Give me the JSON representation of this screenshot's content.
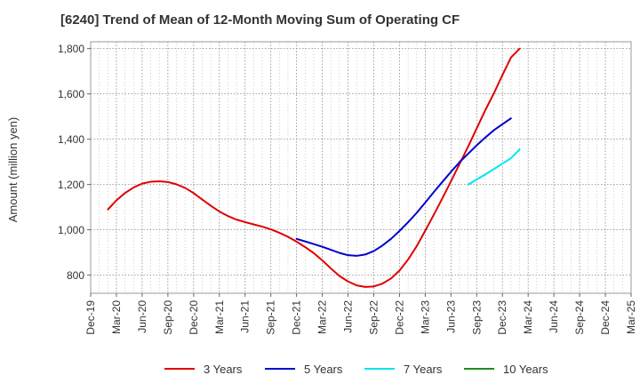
{
  "chart_data": {
    "type": "line",
    "title": "[6240]  Trend of Mean of 12-Month Moving Sum of Operating CF",
    "xlabel": "",
    "ylabel": "Amount (million yen)",
    "ylim": [
      720,
      1830
    ],
    "yticks": [
      800,
      1000,
      1200,
      1400,
      1600,
      1800
    ],
    "ytick_labels": [
      "800",
      "1,000",
      "1,200",
      "1,400",
      "1,600",
      "1,800"
    ],
    "x_tick_labels": [
      "Dec-19",
      "Mar-20",
      "Jun-20",
      "Sep-20",
      "Dec-20",
      "Mar-21",
      "Jun-21",
      "Sep-21",
      "Dec-21",
      "Mar-22",
      "Jun-22",
      "Sep-22",
      "Dec-22",
      "Mar-23",
      "Jun-23",
      "Sep-23",
      "Dec-23",
      "Mar-24",
      "Jun-24",
      "Sep-24",
      "Dec-24",
      "Mar-25"
    ],
    "x_unit": "quarter index from Dec-19",
    "grid": true,
    "legend_position": "bottom",
    "series": [
      {
        "name": "3 Years",
        "color": "#e00000",
        "points": [
          [
            0.67,
            1090
          ],
          [
            1,
            1130
          ],
          [
            1.33,
            1162
          ],
          [
            1.67,
            1187
          ],
          [
            2,
            1204
          ],
          [
            2.33,
            1212
          ],
          [
            2.67,
            1214
          ],
          [
            3,
            1211
          ],
          [
            3.33,
            1201
          ],
          [
            3.67,
            1185
          ],
          [
            4,
            1162
          ],
          [
            4.33,
            1134
          ],
          [
            4.67,
            1106
          ],
          [
            5,
            1081
          ],
          [
            5.33,
            1061
          ],
          [
            5.67,
            1045
          ],
          [
            6,
            1034
          ],
          [
            6.33,
            1024
          ],
          [
            6.67,
            1014
          ],
          [
            7,
            1002
          ],
          [
            7.33,
            987
          ],
          [
            7.67,
            969
          ],
          [
            8,
            948
          ],
          [
            8.33,
            924
          ],
          [
            8.67,
            897
          ],
          [
            9,
            865
          ],
          [
            9.33,
            830
          ],
          [
            9.67,
            796
          ],
          [
            10,
            772
          ],
          [
            10.33,
            755
          ],
          [
            10.67,
            748
          ],
          [
            11,
            750
          ],
          [
            11.33,
            762
          ],
          [
            11.67,
            785
          ],
          [
            12,
            820
          ],
          [
            12.33,
            868
          ],
          [
            12.67,
            928
          ],
          [
            13,
            996
          ],
          [
            13.33,
            1066
          ],
          [
            13.67,
            1140
          ],
          [
            14,
            1214
          ],
          [
            14.33,
            1290
          ],
          [
            14.67,
            1368
          ],
          [
            15,
            1448
          ],
          [
            15.33,
            1527
          ],
          [
            15.67,
            1603
          ],
          [
            16,
            1683
          ],
          [
            16.33,
            1760
          ],
          [
            16.67,
            1800
          ]
        ]
      },
      {
        "name": "5 Years",
        "color": "#0000cc",
        "points": [
          [
            8,
            960
          ],
          [
            8.33,
            949
          ],
          [
            8.67,
            937
          ],
          [
            9,
            925
          ],
          [
            9.33,
            912
          ],
          [
            9.67,
            898
          ],
          [
            10,
            888
          ],
          [
            10.33,
            885
          ],
          [
            10.67,
            891
          ],
          [
            11,
            906
          ],
          [
            11.33,
            930
          ],
          [
            11.67,
            960
          ],
          [
            12,
            995
          ],
          [
            12.33,
            1033
          ],
          [
            12.67,
            1075
          ],
          [
            13,
            1120
          ],
          [
            13.33,
            1166
          ],
          [
            13.67,
            1212
          ],
          [
            14,
            1256
          ],
          [
            14.33,
            1298
          ],
          [
            14.67,
            1336
          ],
          [
            15,
            1373
          ],
          [
            15.33,
            1407
          ],
          [
            15.67,
            1440
          ],
          [
            16,
            1466
          ],
          [
            16.33,
            1492
          ]
        ]
      },
      {
        "name": "7 Years",
        "color": "#00e5ee",
        "points": [
          [
            14.67,
            1200
          ],
          [
            15,
            1222
          ],
          [
            15.33,
            1244
          ],
          [
            15.67,
            1268
          ],
          [
            16,
            1292
          ],
          [
            16.33,
            1316
          ],
          [
            16.67,
            1355
          ]
        ]
      },
      {
        "name": "10 Years",
        "color": "#228b22",
        "points": []
      }
    ]
  }
}
